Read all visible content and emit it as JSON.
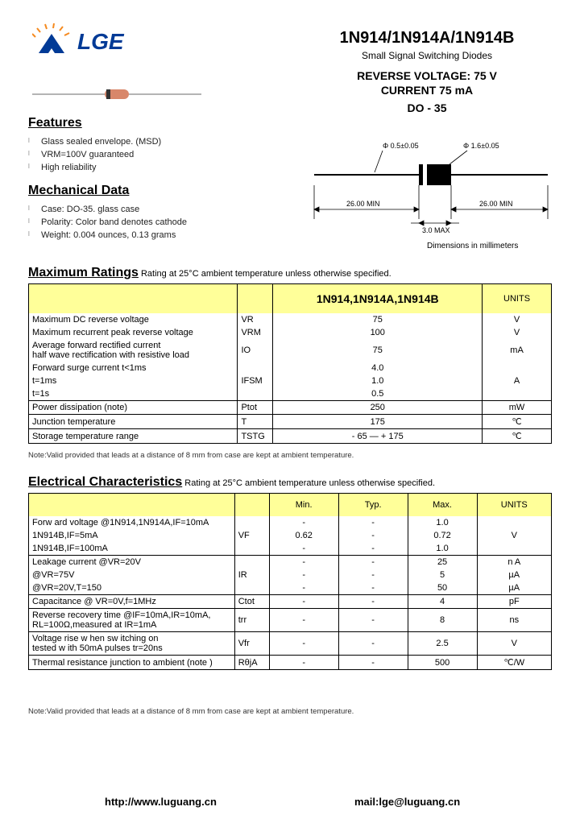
{
  "logo": {
    "text": "LGE",
    "colors": {
      "blue": "#003a96",
      "orange": "#f58a1f"
    }
  },
  "header": {
    "title": "1N914/1N914A/1N914B",
    "subtitle": "Small Signal Switching Diodes",
    "rev_voltage_label": "REVERSE  VOLTAGE:    75  V",
    "current_label": "CURRENT     75  mA",
    "package": "DO - 35"
  },
  "package_diagram": {
    "dims_caption": "Dimensions in millimeters",
    "d1": "Φ 0.5±0.05",
    "d2": "Φ 1.6±0.05",
    "len": "26.00 MIN",
    "body": "3.0 MAX"
  },
  "features": {
    "heading": "Features",
    "items": [
      "Glass sealed envelope. (MSD)",
      "VRM=100V guaranteed",
      "High reliability"
    ]
  },
  "mech": {
    "heading": "Mechanical Data",
    "items": [
      "Case:  DO-35. glass case",
      "Polarity: Color band denotes cathode",
      "Weight: 0.004 ounces, 0.13 grams"
    ]
  },
  "max_ratings": {
    "title": "Maximum Ratings",
    "note_inline": " Rating at 25°C ambient temperature unless otherwise specified.",
    "col_header": "1N914,1N914A,1N914B",
    "units_header": "UNITS",
    "rows": [
      {
        "label": "Maximum DC reverse voltage",
        "sym": "VR",
        "val": "75",
        "unit": "V"
      },
      {
        "label": "Maximum recurrent peak reverse voltage",
        "sym": "VRM",
        "val": "100",
        "unit": "V"
      },
      {
        "label": "Average forward rectified current\n     half wave rectification with resistive  load",
        "sym": "IO",
        "val": "75",
        "unit": "mA"
      },
      {
        "label": "Forward surge current    t<1ms",
        "sym": "",
        "val": "4.0",
        "unit": ""
      },
      {
        "label": "                                      t=1ms",
        "sym": "IFSM",
        "val": "1.0",
        "unit": "A"
      },
      {
        "label": "                                      t=1s",
        "sym": "",
        "val": "0.5",
        "unit": ""
      },
      {
        "label": "Power dissipation    (note)",
        "sym": "Ptot",
        "val": "250",
        "unit": "mW",
        "bt": true
      },
      {
        "label": "Junction temperature",
        "sym": "T",
        "val": "175",
        "unit": "℃",
        "bt": true
      },
      {
        "label": "Storage temperature range",
        "sym": "TSTG",
        "val": "- 65 — + 175",
        "unit": "℃",
        "bt": true
      }
    ],
    "footnote": "Note:Valid provided that leads at a distance of 8 mm from case are kept at ambient temperature."
  },
  "elec": {
    "title": "Electrical Characteristics",
    "note_inline": " Rating at 25°C ambient temperature unless otherwise specified.",
    "cols": {
      "min": "Min.",
      "typ": "Typ.",
      "max": "Max.",
      "units": "UNITS"
    },
    "rows": [
      {
        "label": "Forw ard voltage @1N914,1N914A,IF=10mA",
        "sym": "",
        "min": "-",
        "typ": "-",
        "max": "1.0",
        "unit": ""
      },
      {
        "label": "                       1N914B,IF=5mA",
        "sym": "VF",
        "min": "0.62",
        "typ": "-",
        "max": "0.72",
        "unit": "V"
      },
      {
        "label": "                       1N914B,IF=100mA",
        "sym": "",
        "min": "-",
        "typ": "-",
        "max": "1.0",
        "unit": ""
      },
      {
        "label": "Leakage current    @VR=20V",
        "sym": "",
        "min": "-",
        "typ": "-",
        "max": "25",
        "unit": "n A",
        "bt": true
      },
      {
        "label": "                              @VR=75V",
        "sym": "IR",
        "min": "-",
        "typ": "-",
        "max": "5",
        "unit": "µA"
      },
      {
        "label": "                              @VR=20V,T=150",
        "sym": "",
        "min": "-",
        "typ": "-",
        "max": "50",
        "unit": "µA"
      },
      {
        "label": "Capacitance        @ VR=0V,f=1MHz",
        "sym": "Ctot",
        "min": "-",
        "typ": "-",
        "max": "4",
        "unit": "pF",
        "bt": true
      },
      {
        "label": "Reverse recovery time   @IF=10mA,IR=10mA,\n    RL=100Ω,measured at IR=1mA",
        "sym": "trr",
        "min": "-",
        "typ": "-",
        "max": "8",
        "unit": "ns",
        "bt": true
      },
      {
        "label": "Voltage rise w hen sw itching on\n  tested w ith 50mA pulses tr=20ns",
        "sym": "Vfr",
        "min": "-",
        "typ": "-",
        "max": "2.5",
        "unit": "V",
        "bt": true
      },
      {
        "label": "Thermal resistance junction to ambient (note )",
        "sym": "RθjA",
        "min": "-",
        "typ": "-",
        "max": "500",
        "unit": "℃/W",
        "bt": true
      }
    ],
    "footnote": "Note:Valid provided that leads at a distance of 8 mm from case are kept at ambient temperature."
  },
  "footer": {
    "url": "http://www.luguang.cn",
    "mail": "mail:lge@luguang.cn"
  }
}
